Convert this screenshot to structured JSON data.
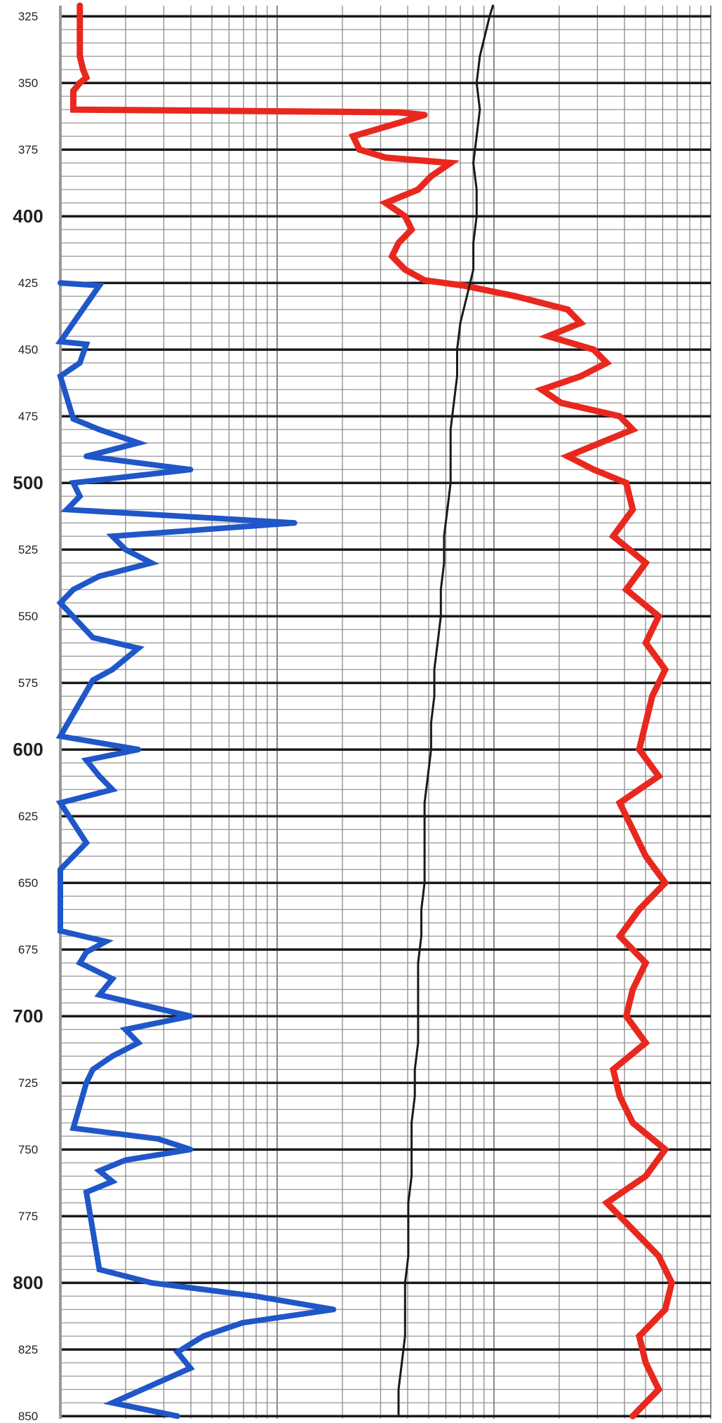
{
  "chart_data": {
    "type": "line",
    "orientation": "vertical-depth-log",
    "title": "",
    "xlabel": "",
    "ylabel": "",
    "y_range": [
      321,
      851
    ],
    "y_inverted": true,
    "y_tick_labels": [
      "325",
      "350",
      "375",
      "400",
      "425",
      "450",
      "475",
      "500",
      "525",
      "550",
      "575",
      "600",
      "625",
      "650",
      "675",
      "700",
      "725",
      "750",
      "775",
      "800",
      "825",
      "850"
    ],
    "y_major_labels": [
      "400",
      "500",
      "600",
      "700",
      "800"
    ],
    "x_scale": "log",
    "x_decades": 3,
    "grid": true,
    "legend": "none",
    "colors": {
      "red_curve": "#e8281e",
      "blue_curve": "#1f56c8",
      "black_curve": "#1a1a1a",
      "grid_minor": "#8a8a8a",
      "grid_major": "#1a1a1a",
      "axis": "#999999"
    },
    "series": [
      {
        "color": "red",
        "description_note": "",
        "depth": [
          321,
          330,
          340,
          345,
          348,
          350,
          353,
          358,
          360,
          361,
          362,
          365,
          370,
          375,
          378,
          380,
          385,
          390,
          395,
          400,
          405,
          410,
          415,
          420,
          424,
          426,
          430,
          435,
          440,
          445,
          450,
          455,
          460,
          465,
          470,
          475,
          480,
          485,
          490,
          495,
          500,
          510,
          520,
          530,
          540,
          550,
          560,
          570,
          580,
          590,
          600,
          610,
          620,
          630,
          640,
          650,
          660,
          670,
          680,
          690,
          700,
          710,
          720,
          730,
          740,
          750,
          760,
          770,
          780,
          790,
          800,
          810,
          820,
          830,
          840,
          850
        ],
        "x_fraction": [
          0.03,
          0.03,
          0.03,
          0.035,
          0.04,
          0.03,
          0.02,
          0.02,
          0.02,
          0.52,
          0.56,
          0.52,
          0.45,
          0.46,
          0.5,
          0.6,
          0.57,
          0.55,
          0.5,
          0.53,
          0.54,
          0.52,
          0.51,
          0.53,
          0.56,
          0.62,
          0.7,
          0.78,
          0.8,
          0.75,
          0.82,
          0.84,
          0.8,
          0.74,
          0.77,
          0.86,
          0.88,
          0.83,
          0.78,
          0.82,
          0.87,
          0.88,
          0.85,
          0.9,
          0.87,
          0.92,
          0.9,
          0.93,
          0.91,
          0.9,
          0.89,
          0.92,
          0.86,
          0.88,
          0.9,
          0.93,
          0.89,
          0.86,
          0.9,
          0.88,
          0.87,
          0.9,
          0.85,
          0.86,
          0.88,
          0.93,
          0.9,
          0.84,
          0.88,
          0.92,
          0.94,
          0.93,
          0.89,
          0.9,
          0.92,
          0.88
        ]
      },
      {
        "color": "blue",
        "depth": [
          425,
          426,
          447,
          448,
          455,
          460,
          476,
          480,
          485,
          490,
          495,
          500,
          505,
          510,
          515,
          520,
          525,
          530,
          535,
          540,
          545,
          558,
          562,
          566,
          570,
          574,
          595,
          600,
          604,
          610,
          615,
          620,
          635,
          640,
          645,
          668,
          672,
          676,
          680,
          686,
          692,
          700,
          705,
          710,
          715,
          720,
          725,
          742,
          746,
          750,
          754,
          758,
          762,
          766,
          795,
          800,
          805,
          810,
          815,
          820,
          826,
          832,
          845,
          850
        ],
        "x_fraction": [
          0.0,
          0.06,
          0.0,
          0.04,
          0.03,
          0.0,
          0.02,
          0.06,
          0.12,
          0.04,
          0.2,
          0.02,
          0.03,
          0.01,
          0.36,
          0.08,
          0.1,
          0.14,
          0.06,
          0.02,
          0.0,
          0.05,
          0.12,
          0.1,
          0.08,
          0.05,
          0.0,
          0.12,
          0.04,
          0.06,
          0.08,
          0.0,
          0.04,
          0.02,
          0.0,
          0.0,
          0.07,
          0.04,
          0.03,
          0.08,
          0.06,
          0.2,
          0.1,
          0.12,
          0.08,
          0.05,
          0.04,
          0.02,
          0.15,
          0.2,
          0.1,
          0.06,
          0.08,
          0.04,
          0.06,
          0.14,
          0.3,
          0.42,
          0.28,
          0.22,
          0.18,
          0.2,
          0.08,
          0.18
        ]
      },
      {
        "color": "black",
        "depth": [
          321,
          325,
          330,
          340,
          350,
          360,
          370,
          380,
          390,
          400,
          410,
          420,
          430,
          440,
          450,
          460,
          470,
          480,
          490,
          500,
          510,
          520,
          530,
          540,
          550,
          560,
          570,
          580,
          590,
          600,
          610,
          620,
          630,
          640,
          650,
          660,
          670,
          680,
          690,
          700,
          710,
          720,
          730,
          740,
          750,
          760,
          770,
          780,
          790,
          800,
          810,
          820,
          830,
          840,
          850
        ],
        "x_fraction": [
          0.665,
          0.66,
          0.655,
          0.645,
          0.64,
          0.645,
          0.64,
          0.635,
          0.64,
          0.64,
          0.635,
          0.635,
          0.625,
          0.615,
          0.61,
          0.61,
          0.605,
          0.6,
          0.6,
          0.6,
          0.595,
          0.59,
          0.59,
          0.585,
          0.585,
          0.58,
          0.575,
          0.575,
          0.57,
          0.57,
          0.565,
          0.56,
          0.56,
          0.56,
          0.56,
          0.555,
          0.555,
          0.55,
          0.55,
          0.55,
          0.55,
          0.545,
          0.545,
          0.54,
          0.54,
          0.54,
          0.535,
          0.535,
          0.535,
          0.53,
          0.53,
          0.53,
          0.525,
          0.52,
          0.52
        ]
      }
    ]
  }
}
